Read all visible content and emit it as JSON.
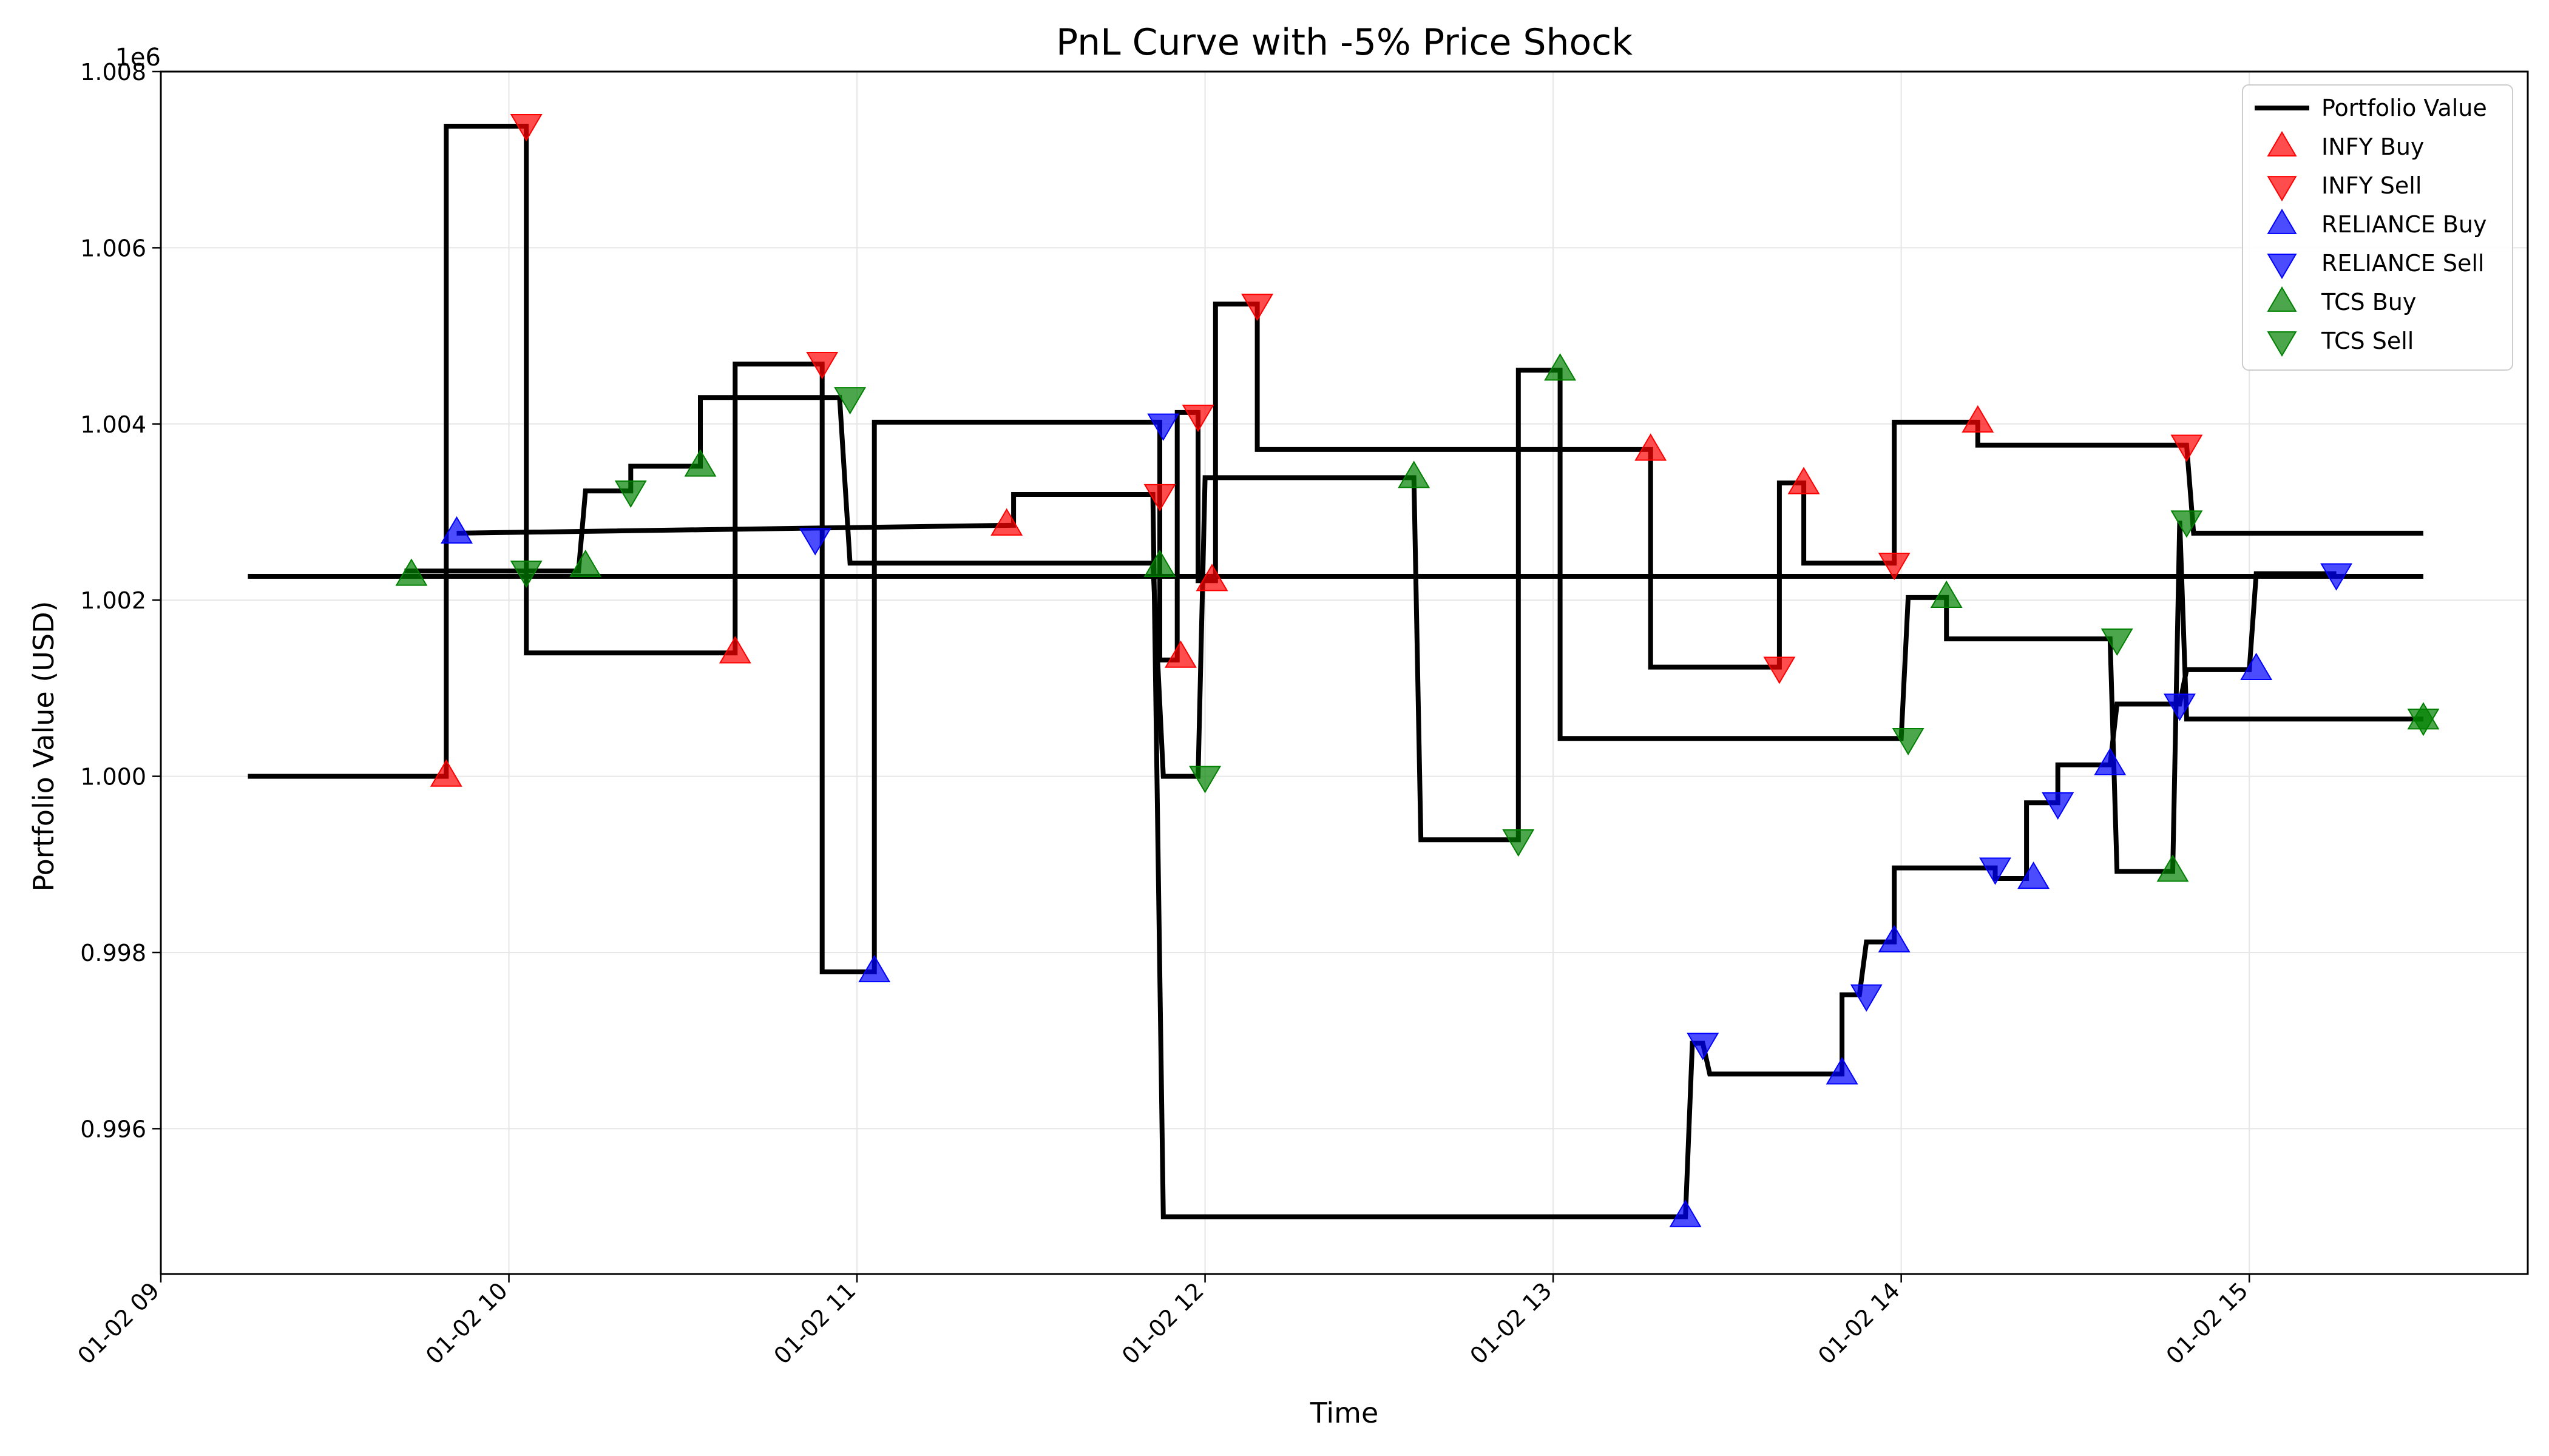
{
  "chart_data": {
    "type": "line",
    "title": "PnL Curve with -5% Price Shock",
    "xlabel": "Time",
    "ylabel": "Portfolio Value (USD)",
    "y_offset_label": "1e6",
    "xlim": [
      9.0,
      15.8
    ],
    "ylim": [
      0.99435,
      1.008
    ],
    "x_ticks": [
      {
        "value": 9,
        "label": "01-02 09"
      },
      {
        "value": 10,
        "label": "01-02 10"
      },
      {
        "value": 11,
        "label": "01-02 11"
      },
      {
        "value": 12,
        "label": "01-02 12"
      },
      {
        "value": 13,
        "label": "01-02 13"
      },
      {
        "value": 14,
        "label": "01-02 14"
      },
      {
        "value": 15,
        "label": "01-02 15"
      }
    ],
    "y_ticks": [
      {
        "value": 0.996,
        "label": "0.996"
      },
      {
        "value": 0.998,
        "label": "0.998"
      },
      {
        "value": 1.0,
        "label": "1.000"
      },
      {
        "value": 1.002,
        "label": "1.002"
      },
      {
        "value": 1.004,
        "label": "1.004"
      },
      {
        "value": 1.006,
        "label": "1.006"
      },
      {
        "value": 1.008,
        "label": "1.008"
      }
    ],
    "grid": true,
    "legend_position": "top-right",
    "portfolio_line": {
      "name": "Portfolio Value",
      "color": "#000000",
      "points": [
        [
          9.25,
          1.0
        ],
        [
          9.82,
          1.0
        ],
        [
          9.82,
          1.00738
        ],
        [
          10.05,
          1.00738
        ],
        [
          10.05,
          1.0014
        ],
        [
          10.65,
          1.0014
        ],
        [
          10.65,
          1.00468
        ],
        [
          10.9,
          1.00468
        ],
        [
          10.9,
          0.99778
        ],
        [
          11.05,
          0.99778
        ],
        [
          11.05,
          1.00402
        ],
        [
          11.87,
          1.00402
        ],
        [
          11.87,
          1.00132
        ],
        [
          11.92,
          1.00132
        ],
        [
          11.92,
          1.00413
        ],
        [
          11.98,
          1.00413
        ],
        [
          11.98,
          1.00222
        ],
        [
          12.03,
          1.00222
        ],
        [
          12.03,
          1.00536
        ],
        [
          12.15,
          1.00536
        ],
        [
          12.15,
          1.00371
        ],
        [
          13.28,
          1.00371
        ],
        [
          13.28,
          1.00124
        ],
        [
          13.65,
          1.00124
        ],
        [
          13.65,
          1.00333
        ],
        [
          13.72,
          1.00333
        ],
        [
          13.72,
          1.00242
        ],
        [
          13.98,
          1.00242
        ],
        [
          13.98,
          1.00402
        ],
        [
          14.22,
          1.00402
        ],
        [
          14.22,
          1.00376
        ],
        [
          14.82,
          1.00376
        ],
        [
          14.84,
          1.00276
        ],
        [
          15.5,
          1.00276
        ]
      ],
      "extra_segments": [
        [
          [
            9.25,
            1.00227
          ],
          [
            15.5,
            1.00227
          ]
        ],
        [
          [
            9.7,
            1.00233
          ],
          [
            10.2,
            1.00233
          ],
          [
            10.22,
            1.00324
          ],
          [
            10.35,
            1.00324
          ],
          [
            10.35,
            1.00352
          ],
          [
            10.55,
            1.00352
          ],
          [
            10.55,
            1.0043
          ],
          [
            10.95,
            1.0043
          ],
          [
            10.98,
            1.00242
          ],
          [
            11.85,
            1.00242
          ],
          [
            11.88,
            1.0
          ],
          [
            11.98,
            1.0
          ],
          [
            12.0,
            1.00339
          ],
          [
            12.6,
            1.00339
          ],
          [
            12.62,
            0.99928
          ],
          [
            12.9,
            0.99928
          ],
          [
            12.9,
            1.00461
          ],
          [
            13.02,
            1.00461
          ],
          [
            13.02,
            1.00043
          ],
          [
            14.0,
            1.00043
          ],
          [
            14.02,
            1.00203
          ],
          [
            14.13,
            1.00203
          ],
          [
            14.13,
            1.00156
          ],
          [
            14.6,
            1.00156
          ],
          [
            14.62,
            0.99892
          ],
          [
            14.78,
            0.99892
          ],
          [
            14.8,
            1.0029
          ],
          [
            14.82,
            1.00065
          ],
          [
            15.5,
            1.00065
          ]
        ],
        [
          [
            9.85,
            1.00276
          ],
          [
            11.45,
            1.00285
          ],
          [
            11.45,
            1.0032
          ],
          [
            11.85,
            1.0032
          ],
          [
            11.88,
            0.995
          ],
          [
            13.38,
            0.995
          ],
          [
            13.4,
            0.99697
          ],
          [
            13.43,
            0.99697
          ],
          [
            13.45,
            0.99662
          ],
          [
            13.83,
            0.99662
          ],
          [
            13.83,
            0.99752
          ],
          [
            13.88,
            0.99752
          ],
          [
            13.9,
            0.99812
          ],
          [
            13.98,
            0.99812
          ],
          [
            13.98,
            0.99896
          ],
          [
            14.27,
            0.99896
          ],
          [
            14.27,
            0.99884
          ],
          [
            14.36,
            0.99884
          ],
          [
            14.36,
            0.9997
          ],
          [
            14.45,
            0.9997
          ],
          [
            14.45,
            1.00013
          ],
          [
            14.6,
            1.00013
          ],
          [
            14.62,
            1.00082
          ],
          [
            14.8,
            1.00082
          ],
          [
            14.82,
            1.00121
          ],
          [
            15.0,
            1.00121
          ],
          [
            15.02,
            1.0023
          ],
          [
            15.25,
            1.0023
          ]
        ]
      ]
    },
    "series": [
      {
        "name": "INFY Buy",
        "color": "#ff0000",
        "marker": "triangle-up",
        "points": [
          [
            9.82,
            1.0
          ],
          [
            10.65,
            1.0014
          ],
          [
            11.43,
            1.00285
          ],
          [
            11.93,
            1.00135
          ],
          [
            12.02,
            1.00222
          ],
          [
            13.28,
            1.0037
          ],
          [
            13.72,
            1.00332
          ],
          [
            14.22,
            1.00402
          ]
        ]
      },
      {
        "name": "INFY Sell",
        "color": "#ff0000",
        "marker": "triangle-down",
        "points": [
          [
            10.05,
            1.0074
          ],
          [
            10.9,
            1.0047
          ],
          [
            11.87,
            1.0032
          ],
          [
            11.98,
            1.0041
          ],
          [
            12.15,
            1.00536
          ],
          [
            13.65,
            1.00124
          ],
          [
            13.98,
            1.00242
          ],
          [
            14.82,
            1.00376
          ]
        ]
      },
      {
        "name": "RELIANCE Buy",
        "color": "#0000ff",
        "marker": "triangle-up",
        "points": [
          [
            9.85,
            1.00276
          ],
          [
            11.05,
            0.99778
          ],
          [
            13.38,
            0.995
          ],
          [
            13.83,
            0.99662
          ],
          [
            13.98,
            0.99812
          ],
          [
            14.38,
            0.99884
          ],
          [
            14.6,
            1.00013
          ],
          [
            15.02,
            1.00121
          ]
        ]
      },
      {
        "name": "RELIANCE Sell",
        "color": "#0000ff",
        "marker": "triangle-down",
        "points": [
          [
            10.88,
            1.0027
          ],
          [
            11.88,
            1.004
          ],
          [
            13.43,
            0.99697
          ],
          [
            13.9,
            0.99752
          ],
          [
            14.27,
            0.99896
          ],
          [
            14.45,
            0.9997
          ],
          [
            14.8,
            1.00082
          ],
          [
            15.25,
            1.0023
          ]
        ]
      },
      {
        "name": "TCS Buy",
        "color": "#008000",
        "marker": "triangle-up",
        "points": [
          [
            9.72,
            1.00228
          ],
          [
            10.22,
            1.00238
          ],
          [
            10.55,
            1.00352
          ],
          [
            11.87,
            1.00238
          ],
          [
            12.6,
            1.00339
          ],
          [
            13.02,
            1.00461
          ],
          [
            14.13,
            1.00203
          ],
          [
            14.78,
            0.99892
          ],
          [
            15.5,
            1.00065
          ]
        ]
      },
      {
        "name": "TCS Sell",
        "color": "#008000",
        "marker": "triangle-down",
        "points": [
          [
            10.05,
            1.00233
          ],
          [
            10.35,
            1.00324
          ],
          [
            10.98,
            1.0043
          ],
          [
            12.0,
            1.0
          ],
          [
            12.9,
            0.99928
          ],
          [
            14.02,
            1.00043
          ],
          [
            14.62,
            1.00156
          ],
          [
            14.82,
            1.0029
          ],
          [
            15.5,
            1.00065
          ]
        ]
      }
    ]
  }
}
